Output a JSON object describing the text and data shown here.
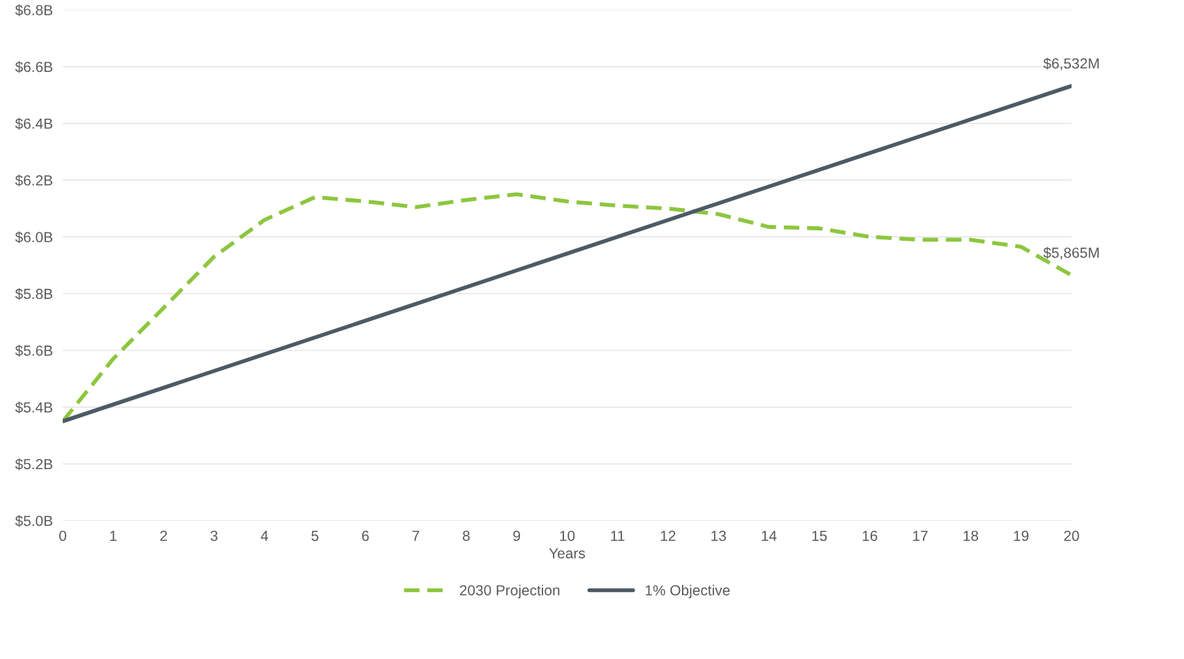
{
  "chart_data": {
    "type": "line",
    "xlabel": "Years",
    "x": [
      0,
      1,
      2,
      3,
      4,
      5,
      6,
      7,
      8,
      9,
      10,
      11,
      12,
      13,
      14,
      15,
      16,
      17,
      18,
      19,
      20
    ],
    "series": [
      {
        "name": "2030 Projection",
        "color": "#8dc63f",
        "line_style": "dashed",
        "values": [
          5.35,
          5.57,
          5.75,
          5.93,
          6.06,
          6.14,
          6.125,
          6.105,
          6.13,
          6.15,
          6.125,
          6.11,
          6.1,
          6.08,
          6.035,
          6.03,
          6.0,
          5.99,
          5.99,
          5.965,
          5.865
        ]
      },
      {
        "name": "1% Objective",
        "color": "#4d5a66",
        "line_style": "solid",
        "x": [
          0,
          20
        ],
        "values": [
          5.35,
          6.532
        ]
      }
    ],
    "annotations": [
      {
        "text": "$6,532M",
        "x": 20,
        "y": 6.532
      },
      {
        "text": "$5,865M",
        "x": 20,
        "y": 5.865
      }
    ],
    "xlim": [
      0,
      20
    ],
    "xticks": [
      0,
      1,
      2,
      3,
      4,
      5,
      6,
      7,
      8,
      9,
      10,
      11,
      12,
      13,
      14,
      15,
      16,
      17,
      18,
      19,
      20
    ],
    "ylim": [
      5.0,
      6.8
    ],
    "yticks": [
      {
        "value": 5.0,
        "label": "$5.0B"
      },
      {
        "value": 5.2,
        "label": "$5.2B"
      },
      {
        "value": 5.4,
        "label": "$5.4B"
      },
      {
        "value": 5.6,
        "label": "$5.6B"
      },
      {
        "value": 5.8,
        "label": "$5.8B"
      },
      {
        "value": 6.0,
        "label": "$6.0B"
      },
      {
        "value": 6.2,
        "label": "$6.2B"
      },
      {
        "value": 6.4,
        "label": "$6.4B"
      },
      {
        "value": 6.6,
        "label": "$6.6B"
      },
      {
        "value": 6.8,
        "label": "$6.8B"
      }
    ],
    "grid": "y",
    "legend": "bottom",
    "marker": "none"
  }
}
